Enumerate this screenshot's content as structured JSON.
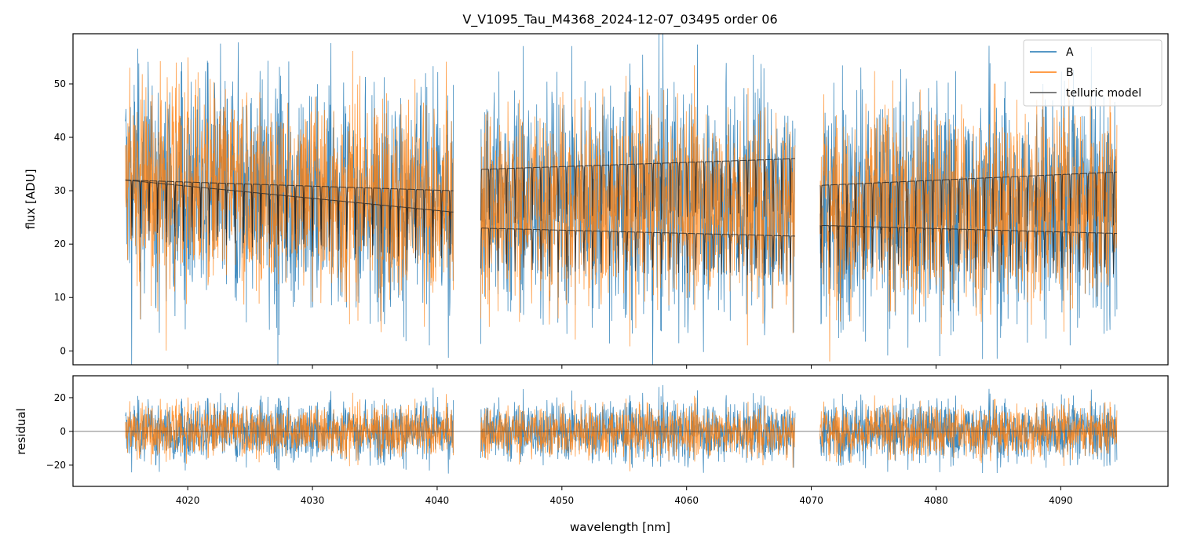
{
  "chart_data": {
    "type": "line",
    "title": "V_V1095_Tau_M4368_2024-12-07_03495  order 06",
    "xlabel": "wavelength [nm]",
    "panels": [
      {
        "ylabel": "flux [ADU]",
        "ylim": [
          -2.6,
          59.4
        ],
        "yticks": [
          0,
          10,
          20,
          30,
          40,
          50
        ]
      },
      {
        "ylabel": "residual",
        "ylim": [
          -32.6,
          33
        ],
        "yticks": [
          -20,
          0,
          20
        ]
      }
    ],
    "xlim": [
      4010.8,
      4098.6
    ],
    "xticks": [
      4020,
      4030,
      4040,
      4050,
      4060,
      4070,
      4080,
      4090
    ],
    "segments": [
      {
        "x_range": [
          4015.0,
          4041.3
        ],
        "model_A": [
          32,
          30
        ],
        "model_B": [
          32,
          26
        ]
      },
      {
        "x_range": [
          4043.5,
          4068.7
        ],
        "model_A": [
          34,
          36
        ],
        "model_B": [
          23,
          21.5
        ]
      },
      {
        "x_range": [
          4070.7,
          4094.5
        ],
        "model_A": [
          31,
          33.5
        ],
        "model_B": [
          23.5,
          22
        ]
      }
    ],
    "series": [
      {
        "name": "A",
        "color": "#1f77b4"
      },
      {
        "name": "B",
        "color": "#ff7f0e"
      },
      {
        "name": "telluric model",
        "color": "#333333"
      }
    ],
    "residual_zero_line": 0,
    "legend": "top-right",
    "grid": false
  }
}
